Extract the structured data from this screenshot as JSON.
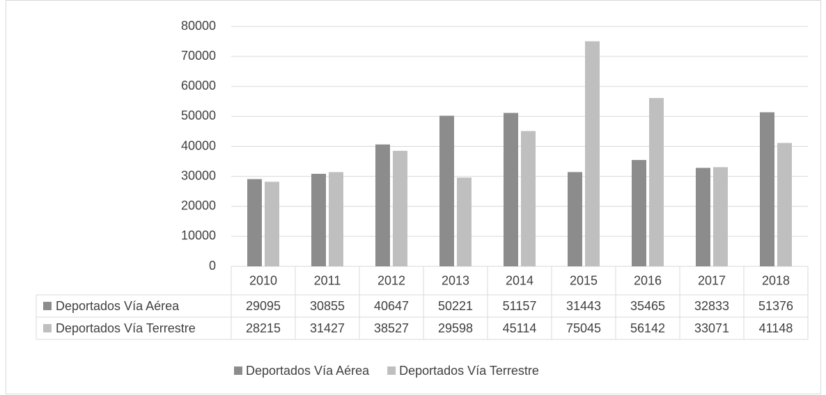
{
  "chart_data": {
    "type": "bar",
    "categories": [
      "2010",
      "2011",
      "2012",
      "2013",
      "2014",
      "2015",
      "2016",
      "2017",
      "2018"
    ],
    "series": [
      {
        "name": "Deportados Vía Aérea",
        "color": "#8c8c8c",
        "values": [
          29095,
          30855,
          40647,
          50221,
          51157,
          31443,
          35465,
          32833,
          51376
        ]
      },
      {
        "name": "Deportados Vía Terrestre",
        "color": "#bfbfbf",
        "values": [
          28215,
          31427,
          38527,
          29598,
          45114,
          75045,
          56142,
          33071,
          41148
        ]
      }
    ],
    "ylim": [
      0,
      80000
    ],
    "yticks": [
      0,
      10000,
      20000,
      30000,
      40000,
      50000,
      60000,
      70000,
      80000
    ],
    "grid": true,
    "legend": "bottom"
  }
}
